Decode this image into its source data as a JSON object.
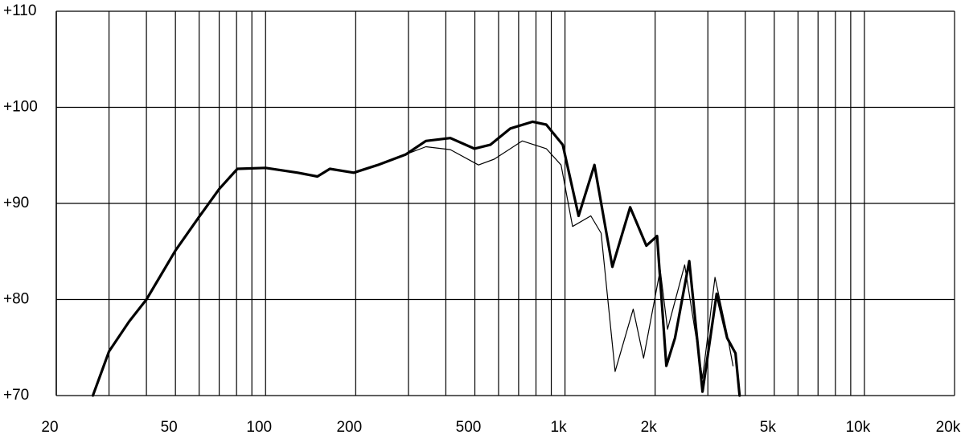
{
  "chart_data": {
    "type": "line",
    "xscale": "log",
    "xlim": [
      20,
      20000
    ],
    "ylim": [
      70,
      110
    ],
    "xticks": [
      20,
      50,
      100,
      200,
      500,
      {
        "value": 1000,
        "label": "1k"
      },
      {
        "value": 2000,
        "label": "2k"
      },
      {
        "value": 5000,
        "label": "5k"
      },
      {
        "value": 10000,
        "label": "10k"
      },
      {
        "value": 20000,
        "label": "20k"
      }
    ],
    "x_minor_ticks": [
      30,
      40,
      60,
      70,
      80,
      90,
      300,
      400,
      600,
      700,
      800,
      900,
      3000,
      4000,
      6000,
      7000,
      8000,
      9000
    ],
    "yticks": [
      {
        "value": 70,
        "label": "+70"
      },
      {
        "value": 80,
        "label": "+80"
      },
      {
        "value": 90,
        "label": "+90"
      },
      {
        "value": 100,
        "label": "+100"
      },
      {
        "value": 110,
        "label": "+110"
      }
    ],
    "grid": true,
    "series": [
      {
        "color": "#000000",
        "line_width": 1.2,
        "x": [
          26.5,
          30,
          35,
          40,
          50,
          60,
          70,
          80.5,
          100,
          128,
          149,
          164,
          197,
          237,
          294,
          343,
          414,
          514,
          580,
          720,
          866,
          970,
          1060,
          1220,
          1320,
          1470,
          1690,
          1830,
          2080,
          2200,
          2510,
          2880,
          3170,
          3480,
          3640
        ],
        "values": [
          70,
          74.6,
          77.7,
          80.0,
          85.1,
          88.6,
          91.5,
          93.6,
          93.7,
          93.2,
          92.8,
          93.6,
          93.2,
          94.0,
          95.1,
          95.9,
          95.6,
          94.0,
          94.6,
          96.5,
          95.7,
          94.0,
          87.6,
          88.7,
          86.9,
          72.5,
          79.0,
          73.9,
          83.1,
          76.9,
          83.6,
          71.8,
          82.3,
          76.4,
          73.1
        ]
      },
      {
        "color": "#000000",
        "line_width": 3.2,
        "x": [
          26.5,
          30,
          35,
          40,
          50,
          60,
          70,
          80.5,
          100,
          128,
          149,
          164,
          197,
          237,
          294,
          343,
          414,
          498,
          563,
          657,
          780,
          866,
          983,
          1110,
          1254,
          1440,
          1650,
          1870,
          2030,
          2180,
          2330,
          2600,
          2880,
          3210,
          3480,
          3710,
          3830
        ],
        "values": [
          70,
          74.6,
          77.7,
          80.0,
          85.1,
          88.6,
          91.5,
          93.6,
          93.7,
          93.2,
          92.8,
          93.6,
          93.2,
          94.0,
          95.1,
          96.5,
          96.8,
          95.7,
          96.1,
          97.8,
          98.5,
          98.2,
          96.1,
          88.7,
          94.0,
          83.4,
          89.6,
          85.6,
          86.6,
          73.1,
          76.0,
          84.0,
          70.4,
          80.6,
          76.0,
          74.4,
          70
        ]
      }
    ]
  }
}
